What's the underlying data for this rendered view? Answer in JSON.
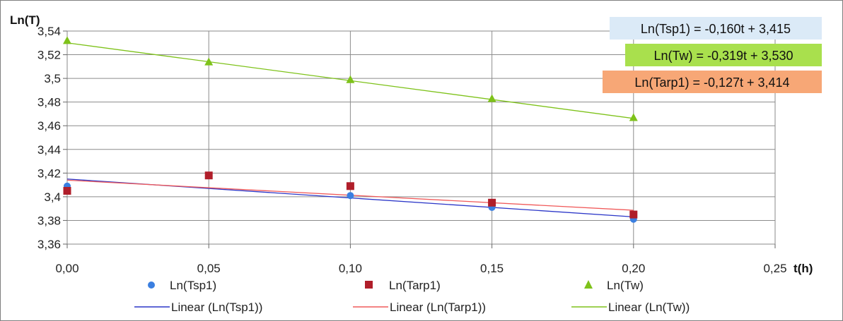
{
  "chart_data": {
    "type": "scatter",
    "xlabel": "t(h)",
    "ylabel": "Ln(T)",
    "xlim": [
      0,
      0.25
    ],
    "ylim": [
      3.36,
      3.54
    ],
    "x_ticks": [
      "0,00",
      "0,05",
      "0,10",
      "0,15",
      "0,20",
      "0,25"
    ],
    "y_ticks": [
      "3,36",
      "3,38",
      "3,4",
      "3,42",
      "3,44",
      "3,46",
      "3,48",
      "3,5",
      "3,52",
      "3,54"
    ],
    "grid": true,
    "legend_position": "bottom",
    "series": [
      {
        "name": "Ln(Tsp1)",
        "marker": "circle",
        "color": "#3b7fe0",
        "x": [
          0,
          0.05,
          0.1,
          0.15,
          0.2
        ],
        "y": [
          3.409,
          3.418,
          3.401,
          3.391,
          3.381
        ]
      },
      {
        "name": "Ln(Tarp1)",
        "marker": "square",
        "color": "#b01e2a",
        "x": [
          0,
          0.05,
          0.1,
          0.15,
          0.2
        ],
        "y": [
          3.405,
          3.418,
          3.409,
          3.395,
          3.385
        ]
      },
      {
        "name": "Ln(Tw)",
        "marker": "triangle",
        "color": "#7ec21a",
        "x": [
          0,
          0.05,
          0.1,
          0.15,
          0.2
        ],
        "y": [
          3.532,
          3.514,
          3.499,
          3.483,
          3.467
        ]
      }
    ],
    "trendlines": [
      {
        "name": "Linear (Ln(Tsp1))",
        "color": "#2b36c8",
        "slope": -0.16,
        "intercept": 3.415,
        "x_range": [
          0,
          0.2
        ]
      },
      {
        "name": "Linear (Ln(Tarp1))",
        "color": "#f05a5a",
        "slope": -0.127,
        "intercept": 3.414,
        "x_range": [
          0,
          0.2
        ]
      },
      {
        "name": "Linear (Ln(Tw))",
        "color": "#7ec21a",
        "slope": -0.319,
        "intercept": 3.53,
        "x_range": [
          0,
          0.2
        ]
      }
    ],
    "annotations": [
      {
        "text": "Ln(Tsp1) = -0,160t + 3,415",
        "background": "#dbeaf7"
      },
      {
        "text": "Ln(Tw) = -0,319t + 3,530",
        "background": "#a9e04d"
      },
      {
        "text": "Ln(Tarp1) = -0,127t + 3,414",
        "background": "#f7a776"
      }
    ]
  }
}
